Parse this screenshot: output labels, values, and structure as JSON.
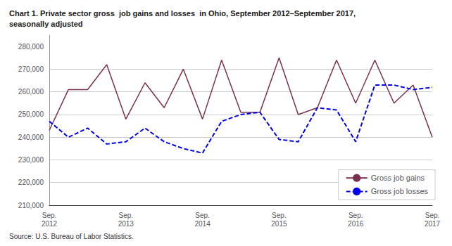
{
  "chart_data": {
    "type": "line",
    "title": "Chart 1. Private sector gross  job gains and losses  in Ohio, September 2012–September 2017,\nseasonally adjusted",
    "source": "Source: U.S. Bureau of Labor Statistics.",
    "categories": [
      "Sep.\n2012",
      null,
      null,
      null,
      "Sep.\n2013",
      null,
      null,
      null,
      "Sep.\n2014",
      null,
      null,
      null,
      "Sep.\n2015",
      null,
      null,
      null,
      "Sep.\n2016",
      null,
      null,
      null,
      "Sep.\n2017"
    ],
    "series": [
      {
        "name": "Gross job gains",
        "color": "#7B3050",
        "line_style": "solid",
        "values": [
          243000,
          261000,
          261000,
          272000,
          248000,
          264000,
          253000,
          270000,
          248000,
          274000,
          251000,
          251000,
          275000,
          250000,
          253000,
          274000,
          255000,
          274000,
          255000,
          263000,
          240000
        ]
      },
      {
        "name": "Gross job losses",
        "color": "#0000EE",
        "line_style": "dashed",
        "values": [
          247000,
          240000,
          244000,
          237000,
          238000,
          244000,
          238000,
          235000,
          233000,
          247000,
          250000,
          251000,
          239000,
          238000,
          253000,
          252000,
          238000,
          263000,
          263000,
          261000,
          262000
        ]
      }
    ],
    "ylim": [
      210000,
      285000
    ],
    "yticks": [
      {
        "value": 210000,
        "label": "210,000"
      },
      {
        "value": 220000,
        "label": "220,000"
      },
      {
        "value": 230000,
        "label": "230,000"
      },
      {
        "value": 240000,
        "label": "240,000"
      },
      {
        "value": 250000,
        "label": "250,000"
      },
      {
        "value": 260000,
        "label": "260,000"
      },
      {
        "value": 270000,
        "label": "270,000"
      },
      {
        "value": 280000,
        "label": "280,000"
      }
    ],
    "grid": true,
    "legend": "lower right"
  }
}
